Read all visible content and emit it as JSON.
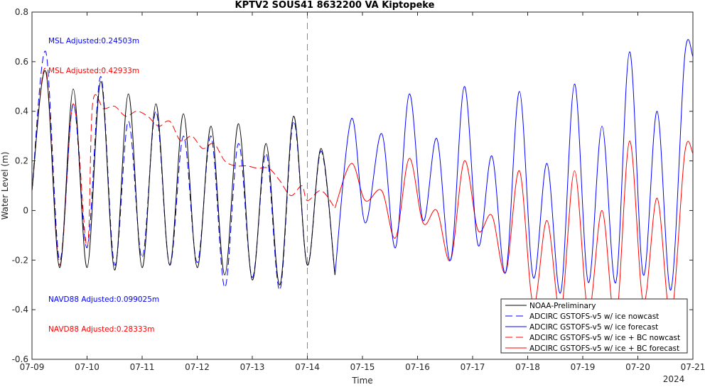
{
  "chart_data": {
    "type": "line",
    "title": "KPTV2 SOUS41 8632200 VA Kiptopeke",
    "xlabel": "Time",
    "ylabel": "Water Level (m)",
    "year_label": "2024",
    "xlim": [
      0,
      12
    ],
    "ylim": [
      -0.6,
      0.8
    ],
    "x_ticks": [
      "07-09",
      "07-10",
      "07-11",
      "07-12",
      "07-13",
      "07-14",
      "07-15",
      "07-16",
      "07-17",
      "07-18",
      "07-19",
      "07-20",
      "07-21"
    ],
    "y_ticks": [
      0.8,
      0.6,
      0.4,
      0.2,
      0,
      -0.2,
      -0.4,
      -0.6
    ],
    "y_tick_labels": [
      "0.8",
      "0.6",
      "0.4",
      "0.2",
      "0",
      "-0.2",
      "-0.4",
      "-0.6"
    ],
    "nowcast_divider_x": 5,
    "grid": false,
    "legend_position": "bottom-right",
    "annotations": [
      {
        "text": "MSL Adjusted:0.24503m",
        "color": "#0000ff"
      },
      {
        "text": "MSL Adjusted:0.42933m",
        "color": "#ff0000"
      },
      {
        "text": "NAVD88 Adjusted:0.099025m",
        "color": "#0000ff"
      },
      {
        "text": "NAVD88 Adjusted:0.28333m",
        "color": "#ff0000"
      }
    ],
    "series": [
      {
        "name": "NOAA-Preliminary",
        "color": "#000000",
        "dash": false,
        "x": [
          0,
          0.25,
          0.5,
          0.75,
          1,
          1.25,
          1.5,
          1.75,
          2,
          2.25,
          2.5,
          2.75,
          3,
          3.25,
          3.5,
          3.75,
          4,
          4.25,
          4.5,
          4.75,
          5,
          5.25,
          5.5
        ],
        "y": [
          0.08,
          0.56,
          -0.23,
          0.49,
          -0.23,
          0.52,
          -0.24,
          0.47,
          -0.23,
          0.43,
          -0.22,
          0.39,
          -0.23,
          0.34,
          -0.26,
          0.35,
          -0.28,
          0.27,
          -0.3,
          0.38,
          -0.22,
          0.25,
          -0.26
        ]
      },
      {
        "name": "ADCIRC GSTOFS-v5  w/ ice nowcast",
        "color": "#0000ff",
        "dash": true,
        "x": [
          0,
          0.25,
          0.5,
          0.75,
          1,
          1.25,
          1.5,
          1.75,
          2,
          2.25,
          2.5,
          2.75,
          3,
          3.25,
          3.5,
          3.75,
          4,
          4.25,
          4.5,
          4.75,
          5,
          5.25,
          5.5
        ],
        "y": [
          0.08,
          0.64,
          -0.2,
          0.43,
          -0.15,
          0.54,
          -0.22,
          0.36,
          -0.19,
          0.4,
          -0.22,
          0.3,
          -0.21,
          0.3,
          -0.31,
          0.27,
          -0.27,
          0.23,
          -0.32,
          0.36,
          -0.22,
          0.24,
          -0.26
        ]
      },
      {
        "name": "ADCIRC GSTOFS-v5  w/ ice forecast",
        "color": "#0000ff",
        "dash": false,
        "x": [
          5.5,
          5.8,
          6.05,
          6.35,
          6.6,
          6.85,
          7.1,
          7.35,
          7.6,
          7.85,
          8.1,
          8.35,
          8.6,
          8.85,
          9.1,
          9.35,
          9.6,
          9.85,
          10.1,
          10.35,
          10.6,
          10.85,
          11.1,
          11.35,
          11.6,
          11.85,
          12
        ],
        "y": [
          -0.26,
          0.37,
          -0.05,
          0.31,
          -0.15,
          0.47,
          -0.04,
          0.29,
          -0.2,
          0.5,
          -0.14,
          0.22,
          -0.25,
          0.48,
          -0.27,
          0.19,
          -0.33,
          0.51,
          -0.29,
          0.34,
          -0.29,
          0.64,
          -0.26,
          0.4,
          -0.32,
          0.62,
          0.62
        ]
      },
      {
        "name": "ADCIRC GSTOFS-v5  w/ ice + BC nowcast",
        "color": "#ff0000",
        "dash": true,
        "x": [
          0,
          0.25,
          0.5,
          0.75,
          1,
          1.1,
          1.3,
          1.5,
          1.7,
          1.9,
          2.1,
          2.3,
          2.5,
          2.7,
          2.9,
          3.1,
          3.3,
          3.5,
          3.7,
          3.9,
          4.1,
          4.3,
          4.5,
          4.7,
          4.9,
          5,
          5.25,
          5.5
        ],
        "y": [
          0.08,
          0.57,
          -0.22,
          0.43,
          -0.15,
          0.43,
          0.41,
          0.42,
          0.38,
          0.4,
          0.38,
          0.34,
          0.36,
          0.28,
          0.3,
          0.25,
          0.27,
          0.2,
          0.18,
          0.18,
          0.17,
          0.17,
          0.12,
          0.06,
          0.1,
          0.04,
          0.08,
          0.01
        ]
      },
      {
        "name": "ADCIRC GSTOFS-v5  w/ ice + BC forecast",
        "color": "#ff0000",
        "dash": false,
        "x": [
          5.5,
          5.8,
          6.05,
          6.35,
          6.6,
          6.85,
          7.1,
          7.35,
          7.6,
          7.85,
          8.1,
          8.35,
          8.6,
          8.85,
          9.1,
          9.35,
          9.6,
          9.85,
          10.1,
          10.35,
          10.6,
          10.85,
          11.1,
          11.35,
          11.6,
          11.85,
          12
        ],
        "y": [
          0.01,
          0.19,
          0.04,
          0.08,
          -0.11,
          0.21,
          -0.05,
          0.0,
          -0.2,
          0.2,
          -0.08,
          -0.02,
          -0.25,
          0.16,
          -0.38,
          -0.04,
          -0.41,
          0.16,
          -0.41,
          0.0,
          -0.45,
          0.28,
          -0.37,
          0.05,
          -0.43,
          0.23,
          0.23
        ]
      }
    ]
  }
}
